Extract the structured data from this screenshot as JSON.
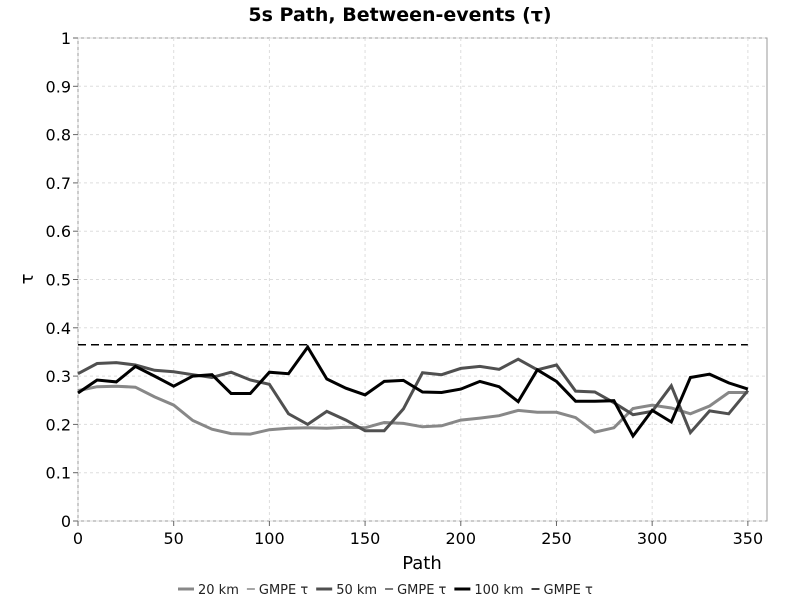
{
  "chart_data": {
    "type": "line",
    "title": "5s Path, Between-events (τ)",
    "xlabel": "Path",
    "ylabel": "τ",
    "xlim": [
      0,
      360
    ],
    "ylim": [
      0,
      1
    ],
    "x_ticks": [
      0,
      50,
      100,
      150,
      200,
      250,
      300,
      350
    ],
    "y_ticks": [
      0,
      0.1,
      0.2,
      0.3,
      0.4,
      0.5,
      0.6,
      0.7,
      0.8,
      0.9,
      1
    ],
    "grid": true,
    "legend_position": "bottom",
    "x": [
      0,
      10,
      20,
      30,
      40,
      50,
      60,
      70,
      80,
      90,
      100,
      110,
      120,
      130,
      140,
      150,
      160,
      170,
      180,
      190,
      200,
      210,
      220,
      230,
      240,
      250,
      260,
      270,
      280,
      290,
      300,
      310,
      320,
      330,
      340,
      350
    ],
    "series": [
      {
        "name": "20 km",
        "color": "#888888",
        "values": [
          0.27,
          0.278,
          0.279,
          0.277,
          0.257,
          0.24,
          0.208,
          0.19,
          0.181,
          0.18,
          0.189,
          0.192,
          0.193,
          0.192,
          0.194,
          0.193,
          0.204,
          0.202,
          0.195,
          0.197,
          0.209,
          0.213,
          0.218,
          0.229,
          0.225,
          0.225,
          0.214,
          0.184,
          0.193,
          0.233,
          0.24,
          0.234,
          0.222,
          0.238,
          0.266,
          0.266
        ]
      },
      {
        "name": "50 km",
        "color": "#505050",
        "values": [
          0.305,
          0.326,
          0.328,
          0.323,
          0.312,
          0.309,
          0.303,
          0.297,
          0.308,
          0.292,
          0.283,
          0.222,
          0.2,
          0.227,
          0.209,
          0.187,
          0.187,
          0.232,
          0.307,
          0.303,
          0.316,
          0.32,
          0.314,
          0.335,
          0.313,
          0.323,
          0.269,
          0.267,
          0.245,
          0.22,
          0.227,
          0.28,
          0.183,
          0.228,
          0.222,
          0.27
        ]
      },
      {
        "name": "100 km",
        "color": "#000000",
        "values": [
          0.265,
          0.292,
          0.288,
          0.32,
          0.3,
          0.279,
          0.3,
          0.303,
          0.264,
          0.264,
          0.308,
          0.305,
          0.36,
          0.294,
          0.275,
          0.261,
          0.289,
          0.291,
          0.267,
          0.266,
          0.273,
          0.289,
          0.278,
          0.247,
          0.313,
          0.289,
          0.248,
          0.248,
          0.249,
          0.176,
          0.229,
          0.205,
          0.297,
          0.304,
          0.286,
          0.273
        ]
      }
    ],
    "gmpe_tau": {
      "value": 0.365,
      "x_range": [
        0,
        350
      ],
      "style": "dashed",
      "color": "#000000"
    },
    "legend": [
      {
        "label": "20 km",
        "color": "#888888",
        "style": "solid"
      },
      {
        "label": "GMPE τ",
        "color": "#888888",
        "style": "dash"
      },
      {
        "label": "50 km",
        "color": "#505050",
        "style": "solid"
      },
      {
        "label": "GMPE τ",
        "color": "#505050",
        "style": "dash"
      },
      {
        "label": "100 km",
        "color": "#000000",
        "style": "solid"
      },
      {
        "label": "GMPE τ",
        "color": "#000000",
        "style": "dash"
      }
    ]
  }
}
